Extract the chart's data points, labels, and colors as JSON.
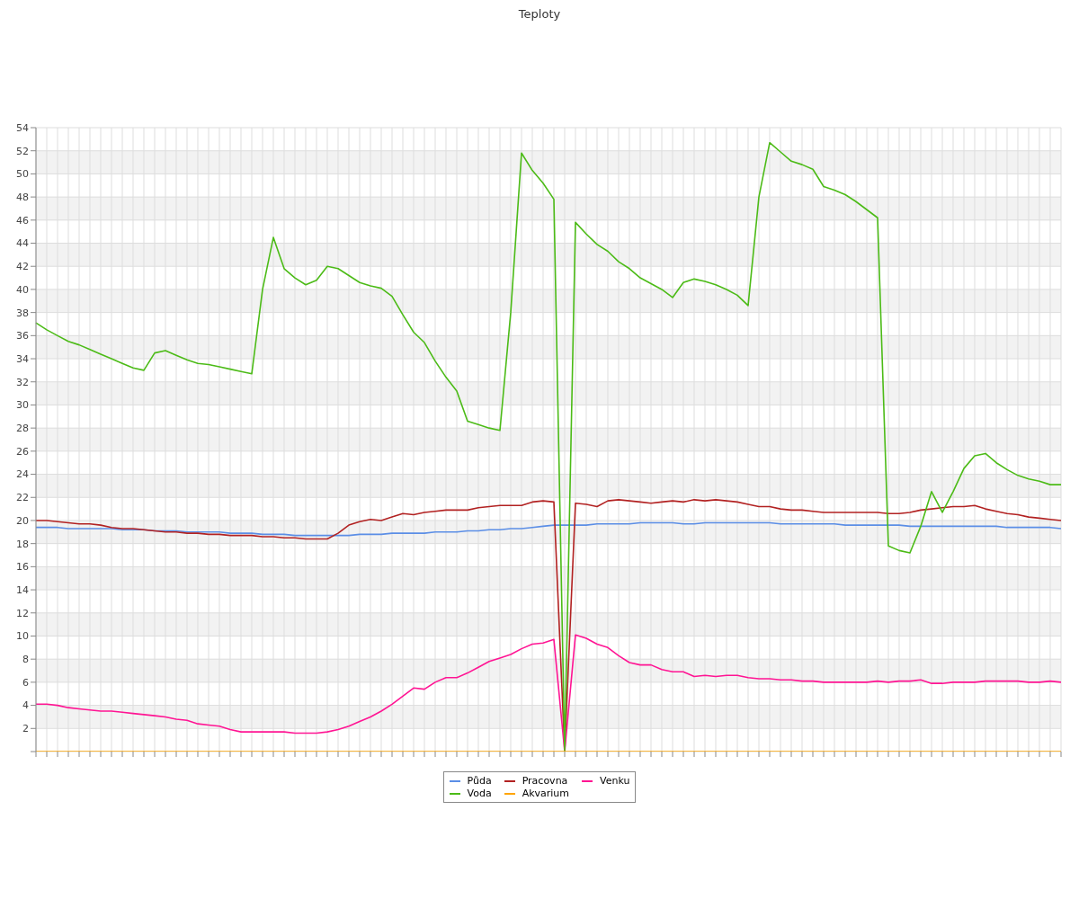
{
  "chart_data": {
    "type": "line",
    "title": "Teploty",
    "categories": [
      null,
      null,
      null,
      null,
      null,
      null,
      null,
      null,
      null,
      null,
      null,
      null,
      null,
      null,
      null,
      null,
      null,
      null,
      null,
      null,
      null,
      null,
      null,
      null,
      null,
      null,
      null,
      null,
      null,
      null,
      null,
      null,
      null,
      null,
      null,
      null,
      null,
      null,
      null,
      null,
      null,
      null,
      null,
      null,
      null,
      null,
      null,
      null,
      null,
      null,
      null,
      null,
      null,
      null,
      null,
      null,
      null,
      null,
      null,
      null,
      null,
      null,
      null,
      null,
      null,
      null,
      null,
      null,
      null,
      null,
      null,
      null,
      null,
      null,
      null,
      null,
      null,
      null,
      null,
      null,
      null,
      null,
      null,
      null,
      null,
      null,
      null,
      null,
      null,
      null,
      null,
      null,
      null,
      null,
      null,
      null
    ],
    "ylim": [
      0,
      54
    ],
    "yticks": [
      {
        "value": 0,
        "label": null
      },
      2,
      4,
      6,
      8,
      10,
      12,
      14,
      16,
      18,
      20,
      22,
      24,
      26,
      28,
      30,
      32,
      34,
      36,
      38,
      40,
      42,
      44,
      46,
      48,
      50,
      52,
      54
    ],
    "grid": true,
    "legend": "bottom",
    "series": [
      {
        "name": "Půda",
        "color": "#5b8ee6",
        "values": [
          19.4,
          19.4,
          19.4,
          19.3,
          19.3,
          19.3,
          19.3,
          19.3,
          19.2,
          19.2,
          19.2,
          19.1,
          19.1,
          19.1,
          19.0,
          19.0,
          19.0,
          19.0,
          18.9,
          18.9,
          18.9,
          18.8,
          18.8,
          18.8,
          18.7,
          18.7,
          18.7,
          18.7,
          18.7,
          18.7,
          18.8,
          18.8,
          18.8,
          18.9,
          18.9,
          18.9,
          18.9,
          19.0,
          19.0,
          19.0,
          19.1,
          19.1,
          19.2,
          19.2,
          19.3,
          19.3,
          19.4,
          19.5,
          19.6,
          19.6,
          19.6,
          19.6,
          19.7,
          19.7,
          19.7,
          19.7,
          19.8,
          19.8,
          19.8,
          19.8,
          19.7,
          19.7,
          19.8,
          19.8,
          19.8,
          19.8,
          19.8,
          19.8,
          19.8,
          19.7,
          19.7,
          19.7,
          19.7,
          19.7,
          19.7,
          19.6,
          19.6,
          19.6,
          19.6,
          19.6,
          19.6,
          19.5,
          19.5,
          19.5,
          19.5,
          19.5,
          19.5,
          19.5,
          19.5,
          19.5,
          19.4,
          19.4,
          19.4,
          19.4,
          19.4,
          19.3
        ]
      },
      {
        "name": "Pracovna",
        "color": "#b22222",
        "values": [
          20.0,
          20.0,
          19.9,
          19.8,
          19.7,
          19.7,
          19.6,
          19.4,
          19.3,
          19.3,
          19.2,
          19.1,
          19.0,
          19.0,
          18.9,
          18.9,
          18.8,
          18.8,
          18.7,
          18.7,
          18.7,
          18.6,
          18.6,
          18.5,
          18.5,
          18.4,
          18.4,
          18.4,
          18.9,
          19.6,
          19.9,
          20.1,
          20.0,
          20.3,
          20.6,
          20.5,
          20.7,
          20.8,
          20.9,
          20.9,
          20.9,
          21.1,
          21.2,
          21.3,
          21.3,
          21.3,
          21.6,
          21.7,
          21.6,
          0,
          21.5,
          21.4,
          21.2,
          21.7,
          21.8,
          21.7,
          21.6,
          21.5,
          21.6,
          21.7,
          21.6,
          21.8,
          21.7,
          21.8,
          21.7,
          21.6,
          21.4,
          21.2,
          21.2,
          21.0,
          20.9,
          20.9,
          20.8,
          20.7,
          20.7,
          20.7,
          20.7,
          20.7,
          20.7,
          20.6,
          20.6,
          20.7,
          20.9,
          21.0,
          21.1,
          21.2,
          21.2,
          21.3,
          21.0,
          20.8,
          20.6,
          20.5,
          20.3,
          20.2,
          20.1,
          20.0
        ]
      },
      {
        "name": "Venku",
        "color": "#ff1493",
        "values": [
          4.1,
          4.1,
          4.0,
          3.8,
          3.7,
          3.6,
          3.5,
          3.5,
          3.4,
          3.3,
          3.2,
          3.1,
          3.0,
          2.8,
          2.7,
          2.4,
          2.3,
          2.2,
          1.9,
          1.7,
          1.7,
          1.7,
          1.7,
          1.7,
          1.6,
          1.6,
          1.6,
          1.7,
          1.9,
          2.2,
          2.6,
          3.0,
          3.5,
          4.1,
          4.8,
          5.5,
          5.4,
          6.0,
          6.4,
          6.4,
          6.8,
          7.3,
          7.8,
          8.1,
          8.4,
          8.9,
          9.3,
          9.4,
          9.7,
          0,
          10.1,
          9.8,
          9.3,
          9.0,
          8.3,
          7.7,
          7.5,
          7.5,
          7.1,
          6.9,
          6.9,
          6.5,
          6.6,
          6.5,
          6.6,
          6.6,
          6.4,
          6.3,
          6.3,
          6.2,
          6.2,
          6.1,
          6.1,
          6.0,
          6.0,
          6.0,
          6.0,
          6.0,
          6.1,
          6.0,
          6.1,
          6.1,
          6.2,
          5.9,
          5.9,
          6.0,
          6.0,
          6.0,
          6.1,
          6.1,
          6.1,
          6.1,
          6.0,
          6.0,
          6.1,
          6.0
        ]
      },
      {
        "name": "Voda",
        "color": "#4cbb17",
        "values": [
          37.1,
          36.5,
          36.0,
          35.5,
          35.2,
          34.8,
          34.4,
          34.0,
          33.6,
          33.2,
          33.0,
          34.5,
          34.7,
          34.3,
          33.9,
          33.6,
          33.5,
          33.3,
          33.1,
          32.9,
          32.7,
          40.0,
          44.5,
          41.8,
          41.0,
          40.4,
          40.8,
          42.0,
          41.8,
          41.2,
          40.6,
          40.3,
          40.1,
          39.4,
          37.8,
          36.3,
          35.4,
          33.8,
          32.4,
          31.2,
          28.6,
          28.3,
          28.0,
          27.8,
          38.0,
          51.8,
          50.3,
          49.2,
          47.8,
          0,
          45.8,
          44.8,
          43.9,
          43.3,
          42.4,
          41.8,
          41.0,
          40.5,
          40.0,
          39.3,
          40.6,
          40.9,
          40.7,
          40.4,
          40.0,
          39.5,
          38.6,
          48.0,
          52.7,
          51.9,
          51.1,
          50.8,
          50.4,
          48.9,
          48.6,
          48.2,
          47.6,
          46.9,
          46.2,
          17.8,
          17.4,
          17.2,
          19.5,
          22.5,
          20.7,
          22.5,
          24.5,
          25.6,
          25.8,
          25.0,
          24.4,
          23.9,
          23.6,
          23.4,
          23.1,
          23.1
        ]
      },
      {
        "name": "Akvarium",
        "color": "#ffa500",
        "values": [
          0,
          0,
          0,
          0,
          0,
          0,
          0,
          0,
          0,
          0,
          0,
          0,
          0,
          0,
          0,
          0,
          0,
          0,
          0,
          0,
          0,
          0,
          0,
          0,
          0,
          0,
          0,
          0,
          0,
          0,
          0,
          0,
          0,
          0,
          0,
          0,
          0,
          0,
          0,
          0,
          0,
          0,
          0,
          0,
          0,
          0,
          0,
          0,
          0,
          0,
          0,
          0,
          0,
          0,
          0,
          0,
          0,
          0,
          0,
          0,
          0,
          0,
          0,
          0,
          0,
          0,
          0,
          0,
          0,
          0,
          0,
          0,
          0,
          0,
          0,
          0,
          0,
          0,
          0,
          0,
          0,
          0,
          0,
          0,
          0,
          0,
          0,
          0,
          0,
          0,
          0,
          0,
          0,
          0,
          0,
          0
        ]
      }
    ]
  }
}
